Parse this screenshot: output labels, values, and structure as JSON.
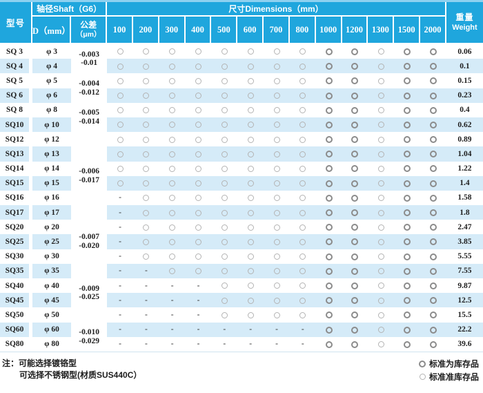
{
  "header": {
    "model_label": "型号",
    "shaft_label": "轴径Shaft（G6）",
    "d_label": "D（mm）",
    "tolerance_label": "公差",
    "tolerance_unit": "（μm）",
    "dimensions_label": "尺寸Dimensions（mm）",
    "dimension_columns": [
      "100",
      "200",
      "300",
      "400",
      "500",
      "600",
      "700",
      "800",
      "1000",
      "1200",
      "1300",
      "1500",
      "2000"
    ],
    "weight_label_cn": "重量",
    "weight_label_en": "Weight"
  },
  "tolerance_groups": [
    {
      "start": 0,
      "span": 2,
      "upper": "-0.003",
      "lower": "-0.01"
    },
    {
      "start": 2,
      "span": 2,
      "upper": "-0.004",
      "lower": "-0.012"
    },
    {
      "start": 4,
      "span": 2,
      "upper": "-0.005",
      "lower": "-0.014"
    },
    {
      "start": 6,
      "span": 6,
      "upper": "-0.006",
      "lower": "-0.017"
    },
    {
      "start": 12,
      "span": 3,
      "upper": "-0.007",
      "lower": "-0.020"
    },
    {
      "start": 15,
      "span": 4,
      "upper": "-0.009",
      "lower": "-0.025"
    },
    {
      "start": 19,
      "span": 2,
      "upper": "-0.010",
      "lower": "-0.029"
    }
  ],
  "rows": [
    {
      "model": "SQ 3",
      "d": "φ 3",
      "cells": [
        "o",
        "o",
        "o",
        "o",
        "o",
        "o",
        "o",
        "o",
        "O",
        "O",
        "o",
        "O",
        "O"
      ],
      "weight": "0.06"
    },
    {
      "model": "SQ 4",
      "d": "φ 4",
      "cells": [
        "o",
        "o",
        "o",
        "o",
        "o",
        "o",
        "o",
        "o",
        "O",
        "O",
        "o",
        "O",
        "O"
      ],
      "weight": "0.1"
    },
    {
      "model": "SQ 5",
      "d": "φ 5",
      "cells": [
        "o",
        "o",
        "o",
        "o",
        "o",
        "o",
        "o",
        "o",
        "O",
        "O",
        "o",
        "O",
        "O"
      ],
      "weight": "0.15"
    },
    {
      "model": "SQ 6",
      "d": "φ 6",
      "cells": [
        "o",
        "o",
        "o",
        "o",
        "o",
        "o",
        "o",
        "o",
        "O",
        "O",
        "o",
        "O",
        "O"
      ],
      "weight": "0.23"
    },
    {
      "model": "SQ 8",
      "d": "φ 8",
      "cells": [
        "o",
        "o",
        "o",
        "o",
        "o",
        "o",
        "o",
        "o",
        "O",
        "O",
        "o",
        "O",
        "O"
      ],
      "weight": "0.4"
    },
    {
      "model": "SQ10",
      "d": "φ 10",
      "cells": [
        "o",
        "o",
        "o",
        "o",
        "o",
        "o",
        "o",
        "o",
        "O",
        "O",
        "o",
        "O",
        "O"
      ],
      "weight": "0.62"
    },
    {
      "model": "SQ12",
      "d": "φ 12",
      "cells": [
        "o",
        "o",
        "o",
        "o",
        "o",
        "o",
        "o",
        "o",
        "O",
        "O",
        "o",
        "O",
        "O"
      ],
      "weight": "0.89"
    },
    {
      "model": "SQ13",
      "d": "φ 13",
      "cells": [
        "o",
        "o",
        "o",
        "o",
        "o",
        "o",
        "o",
        "o",
        "O",
        "O",
        "o",
        "O",
        "O"
      ],
      "weight": "1.04"
    },
    {
      "model": "SQ14",
      "d": "φ 14",
      "cells": [
        "o",
        "o",
        "o",
        "o",
        "o",
        "o",
        "o",
        "o",
        "O",
        "O",
        "o",
        "O",
        "O"
      ],
      "weight": "1.22"
    },
    {
      "model": "SQ15",
      "d": "φ 15",
      "cells": [
        "o",
        "o",
        "o",
        "o",
        "o",
        "o",
        "o",
        "o",
        "O",
        "O",
        "o",
        "O",
        "O"
      ],
      "weight": "1.4"
    },
    {
      "model": "SQ16",
      "d": "φ 16",
      "cells": [
        "-",
        "o",
        "o",
        "o",
        "o",
        "o",
        "o",
        "o",
        "O",
        "O",
        "o",
        "O",
        "O"
      ],
      "weight": "1.58"
    },
    {
      "model": "SQ17",
      "d": "φ 17",
      "cells": [
        "-",
        "o",
        "o",
        "o",
        "o",
        "o",
        "o",
        "o",
        "O",
        "O",
        "o",
        "O",
        "O"
      ],
      "weight": "1.8"
    },
    {
      "model": "SQ20",
      "d": "φ 20",
      "cells": [
        "-",
        "o",
        "o",
        "o",
        "o",
        "o",
        "o",
        "o",
        "O",
        "O",
        "o",
        "O",
        "O"
      ],
      "weight": "2.47"
    },
    {
      "model": "SQ25",
      "d": "φ 25",
      "cells": [
        "-",
        "o",
        "o",
        "o",
        "o",
        "o",
        "o",
        "o",
        "O",
        "O",
        "o",
        "O",
        "O"
      ],
      "weight": "3.85"
    },
    {
      "model": "SQ30",
      "d": "φ 30",
      "cells": [
        "-",
        "o",
        "o",
        "o",
        "o",
        "o",
        "o",
        "o",
        "O",
        "O",
        "o",
        "O",
        "O"
      ],
      "weight": "5.55"
    },
    {
      "model": "SQ35",
      "d": "φ 35",
      "cells": [
        "-",
        "-",
        "o",
        "o",
        "o",
        "o",
        "o",
        "o",
        "O",
        "O",
        "o",
        "O",
        "O"
      ],
      "weight": "7.55"
    },
    {
      "model": "SQ40",
      "d": "φ 40",
      "cells": [
        "-",
        "-",
        "-",
        "-",
        "o",
        "o",
        "o",
        "o",
        "O",
        "O",
        "o",
        "O",
        "O"
      ],
      "weight": "9.87"
    },
    {
      "model": "SQ45",
      "d": "φ 45",
      "cells": [
        "-",
        "-",
        "-",
        "-",
        "o",
        "o",
        "o",
        "o",
        "O",
        "O",
        "o",
        "O",
        "O"
      ],
      "weight": "12.5"
    },
    {
      "model": "SQ50",
      "d": "φ 50",
      "cells": [
        "-",
        "-",
        "-",
        "-",
        "o",
        "o",
        "o",
        "o",
        "O",
        "O",
        "o",
        "O",
        "O"
      ],
      "weight": "15.5"
    },
    {
      "model": "SQ60",
      "d": "φ 60",
      "cells": [
        "-",
        "-",
        "-",
        "-",
        "-",
        "-",
        "-",
        "-",
        "O",
        "O",
        "o",
        "O",
        "O"
      ],
      "weight": "22.2"
    },
    {
      "model": "SQ80",
      "d": "φ 80",
      "cells": [
        "-",
        "-",
        "-",
        "-",
        "-",
        "-",
        "-",
        "-",
        "O",
        "O",
        "o",
        "O",
        "O"
      ],
      "weight": "39.6"
    }
  ],
  "notes": {
    "prefix": "注：",
    "line1": "可能选择镀铬型",
    "line2": "可选择不锈钢型(材质SUS440C）"
  },
  "legend": {
    "items": [
      {
        "symbol": "circle-dark",
        "label": "标准为库存品"
      },
      {
        "symbol": "circle-light",
        "label": "标准准库存品"
      }
    ]
  },
  "colors": {
    "header_blue": "#1fa6dd",
    "header_blue_light": "#8ed1f0",
    "stripe_blue": "#d5ebf8",
    "circle_light": "#b3b3b3",
    "circle_dark": "#8b8b8b"
  }
}
